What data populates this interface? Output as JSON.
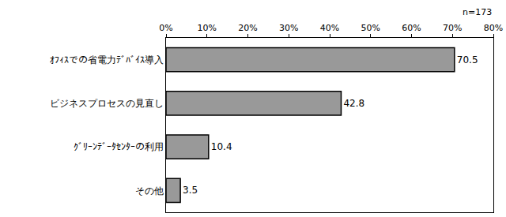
{
  "chart_data": {
    "type": "bar",
    "orientation": "horizontal",
    "categories": [
      "ｵﾌｨｽでの省電力ﾃﾞﾊﾞｲｽ導入",
      "ビジネスプロセスの見直し",
      "ｸﾞﾘｰﾝﾃﾞｰﾀｾﾝﾀｰの利用",
      "その他"
    ],
    "values": [
      70.5,
      42.8,
      10.4,
      3.5
    ],
    "color": "#999999",
    "data_labels": true,
    "grid": false,
    "xlim": [
      0,
      80
    ],
    "xticks": [
      {
        "value": 0,
        "label": "0%"
      },
      {
        "value": 10,
        "label": "10%"
      },
      {
        "value": 20,
        "label": "20%"
      },
      {
        "value": 30,
        "label": "30%"
      },
      {
        "value": 40,
        "label": "40%"
      },
      {
        "value": 50,
        "label": "50%"
      },
      {
        "value": 60,
        "label": "60%"
      },
      {
        "value": 70,
        "label": "70%"
      },
      {
        "value": 80,
        "label": "80%"
      }
    ],
    "annotations": [
      "n=173"
    ]
  }
}
